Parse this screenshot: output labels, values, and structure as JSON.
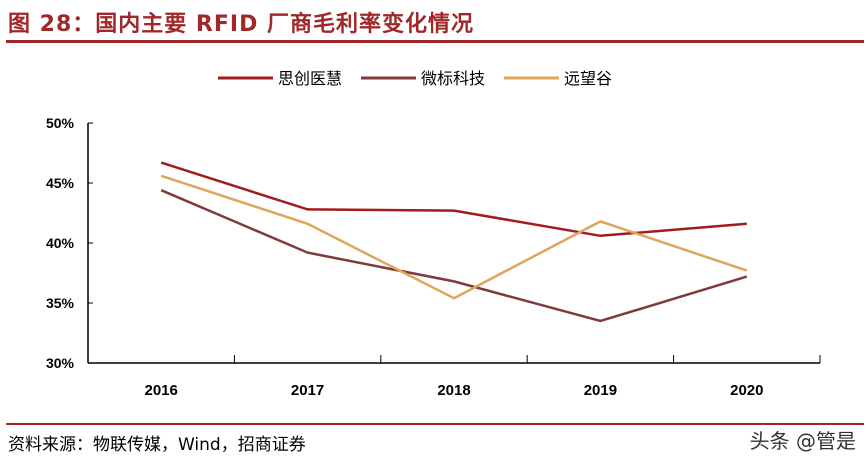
{
  "title": "图 28：国内主要 RFID 厂商毛利率变化情况",
  "source": "资料来源：物联传媒，Wind，招商证券",
  "watermark": "头条 @管是",
  "chart_data": {
    "type": "line",
    "categories": [
      "2016",
      "2017",
      "2018",
      "2019",
      "2020"
    ],
    "ylim": [
      30,
      50
    ],
    "yticks": [
      "30%",
      "35%",
      "40%",
      "45%",
      "50%"
    ],
    "yticks_values": [
      30,
      35,
      40,
      45,
      50
    ],
    "legend_position": "top",
    "grid": false,
    "series": [
      {
        "name": "思创医慧",
        "color": "#a01c1c",
        "values": [
          46.7,
          42.8,
          42.7,
          40.6,
          41.6
        ]
      },
      {
        "name": "微标科技",
        "color": "#7f3b3b",
        "values": [
          44.4,
          39.2,
          36.8,
          33.5,
          37.2
        ]
      },
      {
        "name": "远望谷",
        "color": "#e0a55a",
        "values": [
          45.6,
          41.6,
          35.4,
          41.8,
          37.7
        ]
      }
    ]
  }
}
